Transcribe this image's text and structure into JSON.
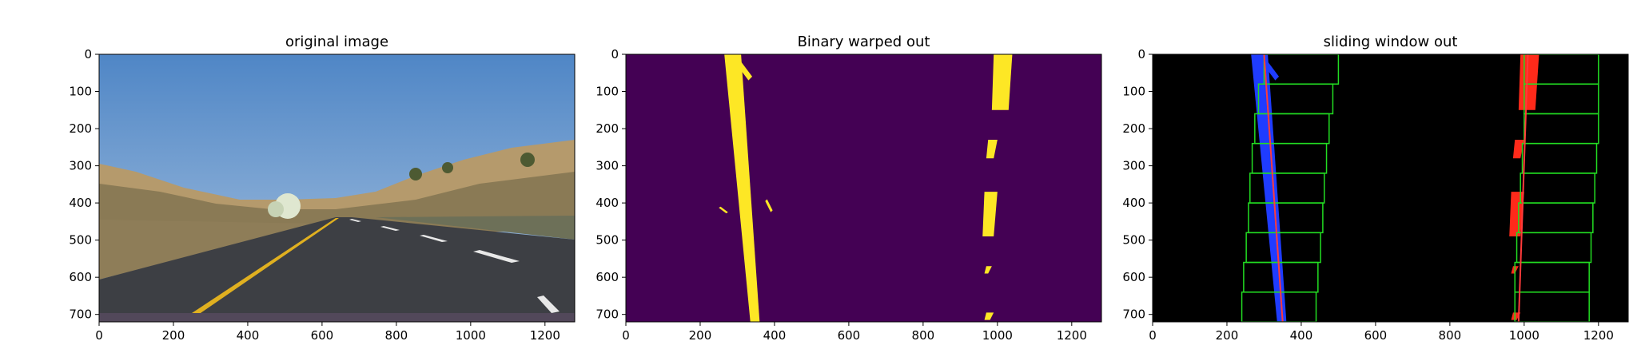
{
  "colors": {
    "binary_bg": "#440154",
    "binary_fg": "#fde725",
    "window_bg": "#000000",
    "left_lane": "#1f3cff",
    "right_lane": "#ff2a1a",
    "window_box": "#22dd22",
    "fit_line": "#ff3b3b",
    "sky": "#5f8fc6",
    "road": "#3d3f44"
  },
  "chart_data": [
    {
      "type": "image",
      "title": "original image",
      "image_content": "dashcam photo of highway road with yellow left lane line and white dashed right lane markings",
      "xlim": [
        0,
        1280
      ],
      "ylim": [
        720,
        0
      ],
      "xticks": [
        "0",
        "200",
        "400",
        "600",
        "800",
        "1000",
        "1200"
      ],
      "yticks": [
        "0",
        "100",
        "200",
        "300",
        "400",
        "500",
        "600",
        "700"
      ]
    },
    {
      "type": "image",
      "title": "Binary warped out",
      "image_content": "bird's-eye binary mask of lane lines",
      "xlim": [
        0,
        1280
      ],
      "ylim": [
        720,
        0
      ],
      "xticks": [
        "0",
        "200",
        "400",
        "600",
        "800",
        "1000",
        "1200"
      ],
      "yticks": [
        "0",
        "100",
        "200",
        "300",
        "400",
        "500",
        "600",
        "700"
      ],
      "left_lane_x": {
        "y0": 300,
        "y720": 350
      },
      "right_lane_x": {
        "y0": 1010,
        "y720": 985
      }
    },
    {
      "type": "image",
      "title": "sliding window out",
      "image_content": "sliding window lane search with fitted polynomial lines",
      "xlim": [
        0,
        1280
      ],
      "ylim": [
        720,
        0
      ],
      "xticks": [
        "0",
        "200",
        "400",
        "600",
        "800",
        "1000",
        "1200"
      ],
      "yticks": [
        "0",
        "100",
        "200",
        "300",
        "400",
        "500",
        "600",
        "700"
      ],
      "window_count": 9,
      "left_window_centers": [
        240,
        245,
        252,
        258,
        262,
        268,
        275,
        285,
        300
      ],
      "right_window_centers": [
        975,
        975,
        980,
        985,
        990,
        995,
        1000,
        1000,
        1000
      ],
      "window_width": 200,
      "left_fit_x": {
        "y0": 300,
        "y720": 350
      },
      "right_fit_x": {
        "y0": 1010,
        "y720": 985
      }
    }
  ]
}
